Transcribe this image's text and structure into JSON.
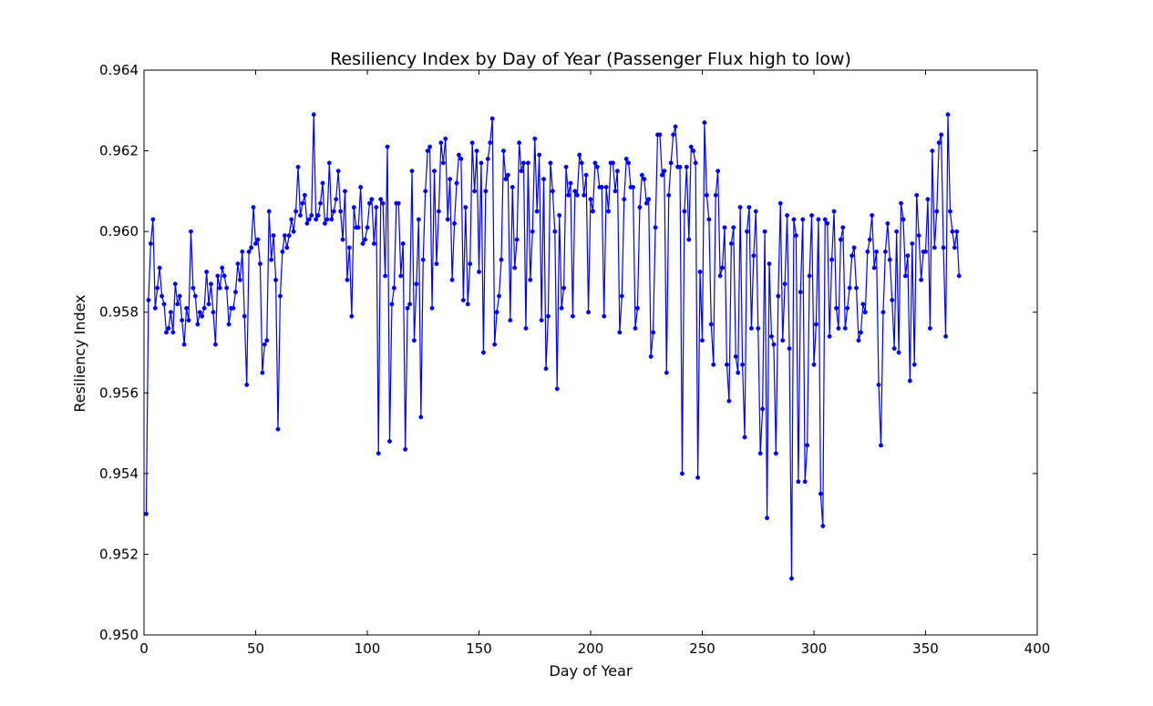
{
  "chart_data": {
    "type": "line",
    "title": "Resiliency Index by Day of Year (Passenger Flux high to low)",
    "xlabel": "Day of Year",
    "ylabel": "Resiliency Index",
    "xlim": [
      0,
      400
    ],
    "ylim": [
      0.95,
      0.964
    ],
    "x_ticks": [
      0,
      50,
      100,
      150,
      200,
      250,
      300,
      350,
      400
    ],
    "x_tick_labels": [
      "0",
      "50",
      "100",
      "150",
      "200",
      "250",
      "300",
      "350",
      "400"
    ],
    "y_ticks": [
      0.95,
      0.952,
      0.954,
      0.956,
      0.958,
      0.96,
      0.962,
      0.964
    ],
    "y_tick_labels": [
      "0.950",
      "0.952",
      "0.954",
      "0.956",
      "0.958",
      "0.960",
      "0.962",
      "0.964"
    ],
    "grid": false,
    "series": [
      {
        "name": "Resiliency Index",
        "color": "#0000ff",
        "marker": "circle",
        "x_start": 1,
        "x_step": 1,
        "values": [
          0.953,
          0.9583,
          0.9597,
          0.9603,
          0.9581,
          0.9586,
          0.9591,
          0.9584,
          0.9582,
          0.9575,
          0.9576,
          0.958,
          0.9575,
          0.9587,
          0.9582,
          0.9584,
          0.9578,
          0.9572,
          0.9581,
          0.9578,
          0.96,
          0.9586,
          0.9584,
          0.9577,
          0.958,
          0.9579,
          0.9581,
          0.959,
          0.9582,
          0.9587,
          0.958,
          0.9572,
          0.9589,
          0.9586,
          0.9591,
          0.9589,
          0.9586,
          0.9577,
          0.9581,
          0.9581,
          0.9585,
          0.9592,
          0.9588,
          0.9595,
          0.9579,
          0.9562,
          0.9595,
          0.9596,
          0.9606,
          0.9597,
          0.9598,
          0.9592,
          0.9565,
          0.9572,
          0.9573,
          0.9605,
          0.9593,
          0.9599,
          0.9588,
          0.9551,
          0.9584,
          0.9595,
          0.9599,
          0.9596,
          0.9599,
          0.9603,
          0.96,
          0.9605,
          0.9616,
          0.9604,
          0.9607,
          0.9609,
          0.9602,
          0.9603,
          0.9604,
          0.9629,
          0.9603,
          0.9604,
          0.9607,
          0.9612,
          0.9602,
          0.9603,
          0.9617,
          0.9603,
          0.9605,
          0.9608,
          0.9615,
          0.9605,
          0.9598,
          0.961,
          0.9588,
          0.9596,
          0.9579,
          0.9606,
          0.9601,
          0.9601,
          0.9611,
          0.9597,
          0.9598,
          0.9601,
          0.9607,
          0.9608,
          0.9597,
          0.9606,
          0.9545,
          0.9608,
          0.9607,
          0.9589,
          0.9621,
          0.9548,
          0.9582,
          0.9586,
          0.9607,
          0.9607,
          0.9589,
          0.9597,
          0.9546,
          0.9581,
          0.9582,
          0.9615,
          0.9573,
          0.9587,
          0.9603,
          0.9554,
          0.9593,
          0.961,
          0.962,
          0.9621,
          0.9581,
          0.9615,
          0.9592,
          0.9605,
          0.9622,
          0.9617,
          0.9623,
          0.9603,
          0.9613,
          0.9588,
          0.9602,
          0.9612,
          0.9619,
          0.9618,
          0.9583,
          0.9606,
          0.9582,
          0.9592,
          0.9622,
          0.961,
          0.962,
          0.959,
          0.9617,
          0.957,
          0.961,
          0.9618,
          0.9622,
          0.9628,
          0.9572,
          0.958,
          0.9584,
          0.9593,
          0.962,
          0.9613,
          0.9614,
          0.9578,
          0.9611,
          0.9591,
          0.9598,
          0.9622,
          0.9615,
          0.9617,
          0.9576,
          0.9617,
          0.9588,
          0.96,
          0.9623,
          0.9605,
          0.9619,
          0.9578,
          0.9613,
          0.9566,
          0.9579,
          0.9617,
          0.961,
          0.96,
          0.9561,
          0.9604,
          0.9581,
          0.9586,
          0.9616,
          0.9609,
          0.9612,
          0.9579,
          0.961,
          0.9609,
          0.9619,
          0.9617,
          0.9609,
          0.9614,
          0.958,
          0.9608,
          0.9605,
          0.9617,
          0.9616,
          0.9611,
          0.9611,
          0.9579,
          0.9611,
          0.9605,
          0.9617,
          0.9617,
          0.961,
          0.9615,
          0.9575,
          0.9584,
          0.9608,
          0.9618,
          0.9617,
          0.9611,
          0.9611,
          0.9576,
          0.9581,
          0.9606,
          0.9614,
          0.9613,
          0.9607,
          0.9608,
          0.9569,
          0.9575,
          0.9601,
          0.9624,
          0.9624,
          0.9614,
          0.9615,
          0.9565,
          0.9609,
          0.9617,
          0.9624,
          0.9626,
          0.9616,
          0.9616,
          0.954,
          0.9605,
          0.9616,
          0.9598,
          0.9621,
          0.962,
          0.9617,
          0.9539,
          0.959,
          0.9573,
          0.9627,
          0.9609,
          0.9603,
          0.9577,
          0.9567,
          0.9609,
          0.9615,
          0.9589,
          0.9591,
          0.9601,
          0.9567,
          0.9558,
          0.9597,
          0.9601,
          0.9569,
          0.9565,
          0.9606,
          0.9567,
          0.9549,
          0.96,
          0.9606,
          0.9576,
          0.9594,
          0.9605,
          0.9576,
          0.9545,
          0.9556,
          0.96,
          0.9529,
          0.9592,
          0.9574,
          0.9572,
          0.9545,
          0.9584,
          0.9607,
          0.9573,
          0.9587,
          0.9604,
          0.9571,
          0.9514,
          0.9603,
          0.9599,
          0.9538,
          0.9585,
          0.9603,
          0.9538,
          0.9547,
          0.9589,
          0.9604,
          0.9567,
          0.9577,
          0.9603,
          0.9535,
          0.9527,
          0.9603,
          0.9602,
          0.9574,
          0.9593,
          0.9605,
          0.9581,
          0.9576,
          0.9598,
          0.9601,
          0.9576,
          0.9581,
          0.9586,
          0.9594,
          0.9596,
          0.9586,
          0.9573,
          0.9575,
          0.9582,
          0.958,
          0.9595,
          0.9598,
          0.9604,
          0.9591,
          0.9595,
          0.9562,
          0.9547,
          0.958,
          0.9595,
          0.9602,
          0.9593,
          0.9583,
          0.9571,
          0.96,
          0.957,
          0.9607,
          0.9603,
          0.9589,
          0.9594,
          0.9563,
          0.9597,
          0.9567,
          0.9609,
          0.9599,
          0.9588,
          0.9595,
          0.9595,
          0.9608,
          0.9576,
          0.962,
          0.9596,
          0.9605,
          0.9622,
          0.9624,
          0.9596,
          0.9574,
          0.9629,
          0.9605,
          0.96,
          0.9596,
          0.96,
          0.9589
        ]
      }
    ]
  }
}
